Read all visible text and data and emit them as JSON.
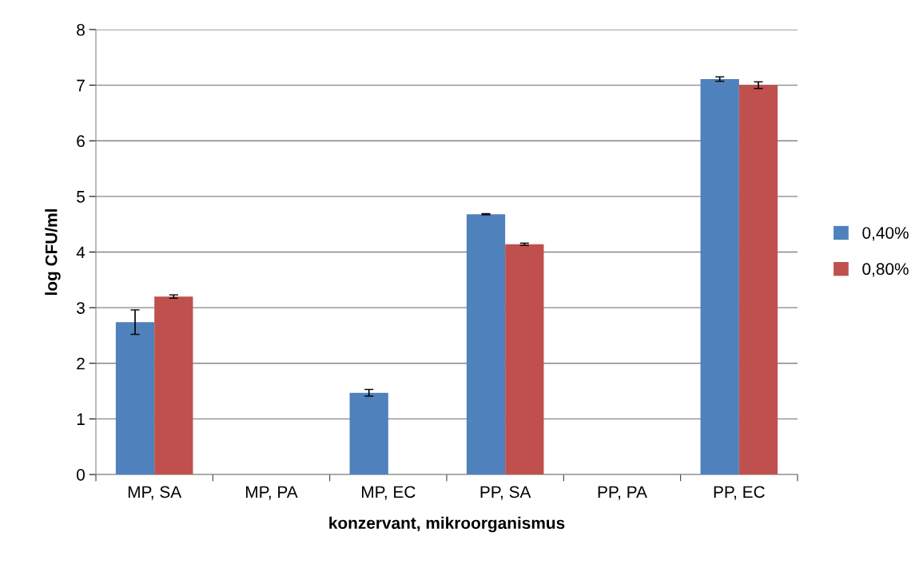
{
  "chart_data": {
    "type": "bar",
    "xlabel": "konzervant, mikroorganismus",
    "ylabel": "log CFU/ml",
    "categories": [
      "MP, SA",
      "MP, PA",
      "MP, EC",
      "PP, SA",
      "PP, PA",
      "PP, EC"
    ],
    "series": [
      {
        "name": "0,40%",
        "color": "#4f81bd",
        "values": [
          2.74,
          0,
          1.47,
          4.68,
          0,
          7.11
        ],
        "errors": [
          0.22,
          null,
          0.06,
          0.01,
          null,
          0.04
        ]
      },
      {
        "name": "0,80%",
        "color": "#c0504d",
        "values": [
          3.2,
          0,
          0,
          4.14,
          0,
          7.0
        ],
        "errors": [
          0.03,
          null,
          null,
          0.02,
          null,
          0.06
        ]
      }
    ],
    "ylim": [
      0,
      8
    ],
    "yticks": [
      0,
      1,
      2,
      3,
      4,
      5,
      6,
      7,
      8
    ],
    "grid": "y",
    "legend": "right"
  }
}
